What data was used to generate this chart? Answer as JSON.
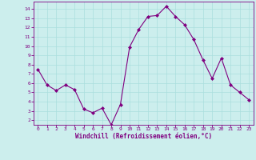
{
  "x": [
    0,
    1,
    2,
    3,
    4,
    5,
    6,
    7,
    8,
    9,
    10,
    11,
    12,
    13,
    14,
    15,
    16,
    17,
    18,
    19,
    20,
    21,
    22,
    23
  ],
  "y": [
    7.5,
    5.8,
    5.2,
    5.8,
    5.3,
    3.2,
    2.8,
    3.3,
    1.5,
    3.7,
    9.9,
    11.8,
    13.2,
    13.3,
    14.3,
    13.2,
    12.3,
    10.7,
    8.5,
    6.5,
    8.7,
    5.8,
    5.0,
    4.2
  ],
  "line_color": "#800080",
  "marker": "D",
  "marker_size": 2,
  "bg_color": "#cceeed",
  "grid_color": "#aadddd",
  "xlabel": "Windchill (Refroidissement éolien,°C)",
  "xlabel_color": "#800080",
  "tick_color": "#800080",
  "ylim": [
    1.5,
    14.8
  ],
  "xlim": [
    -0.5,
    23.5
  ],
  "yticks": [
    2,
    3,
    4,
    5,
    6,
    7,
    8,
    9,
    10,
    11,
    12,
    13,
    14
  ],
  "xticks": [
    0,
    1,
    2,
    3,
    4,
    5,
    6,
    7,
    8,
    9,
    10,
    11,
    12,
    13,
    14,
    15,
    16,
    17,
    18,
    19,
    20,
    21,
    22,
    23
  ]
}
